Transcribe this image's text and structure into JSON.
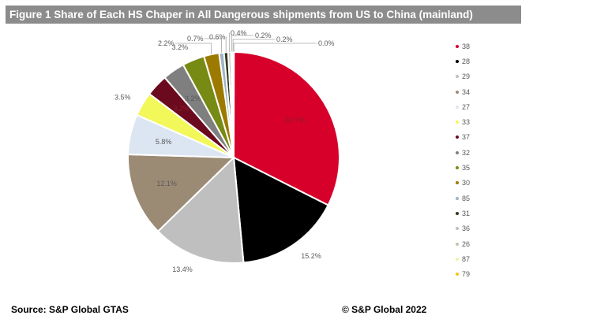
{
  "chart_data": {
    "type": "pie",
    "title": "Figure 1 Share of Each HS Chaper in All Dangerous shipments from US to China (mainland)",
    "categories": [
      "38",
      "28",
      "29",
      "34",
      "27",
      "33",
      "37",
      "32",
      "35",
      "30",
      "85",
      "31",
      "36",
      "26",
      "87",
      "79"
    ],
    "values": [
      30.7,
      15.2,
      13.4,
      12.1,
      5.8,
      3.5,
      3.2,
      3.2,
      3.2,
      2.2,
      0.7,
      0.6,
      0.4,
      0.2,
      0.2,
      0.0
    ],
    "labels": [
      "30.7%",
      "15.2%",
      "13.4%",
      "12.1%",
      "5.8%",
      "3.5%",
      "3.2%",
      "3.2%",
      "3.2%",
      "2.2%",
      "0.7%",
      "0.6%",
      "0.4%",
      "0.2%",
      "0.2%",
      "0.0%"
    ],
    "colors": [
      "#d7002b",
      "#000000",
      "#bfbfbf",
      "#9b8b75",
      "#dce6f2",
      "#f2f75a",
      "#6b0a1e",
      "#7f7f7f",
      "#778a14",
      "#9c7a00",
      "#9fb3c6",
      "#2f3b1a",
      "#bfbfbf",
      "#c9c2b4",
      "#e8f5a8",
      "#f5c518"
    ],
    "legend_position": "right"
  },
  "footer": {
    "source": "Source: S&P Global GTAS",
    "copyright": "©  S&P Global 2022"
  }
}
